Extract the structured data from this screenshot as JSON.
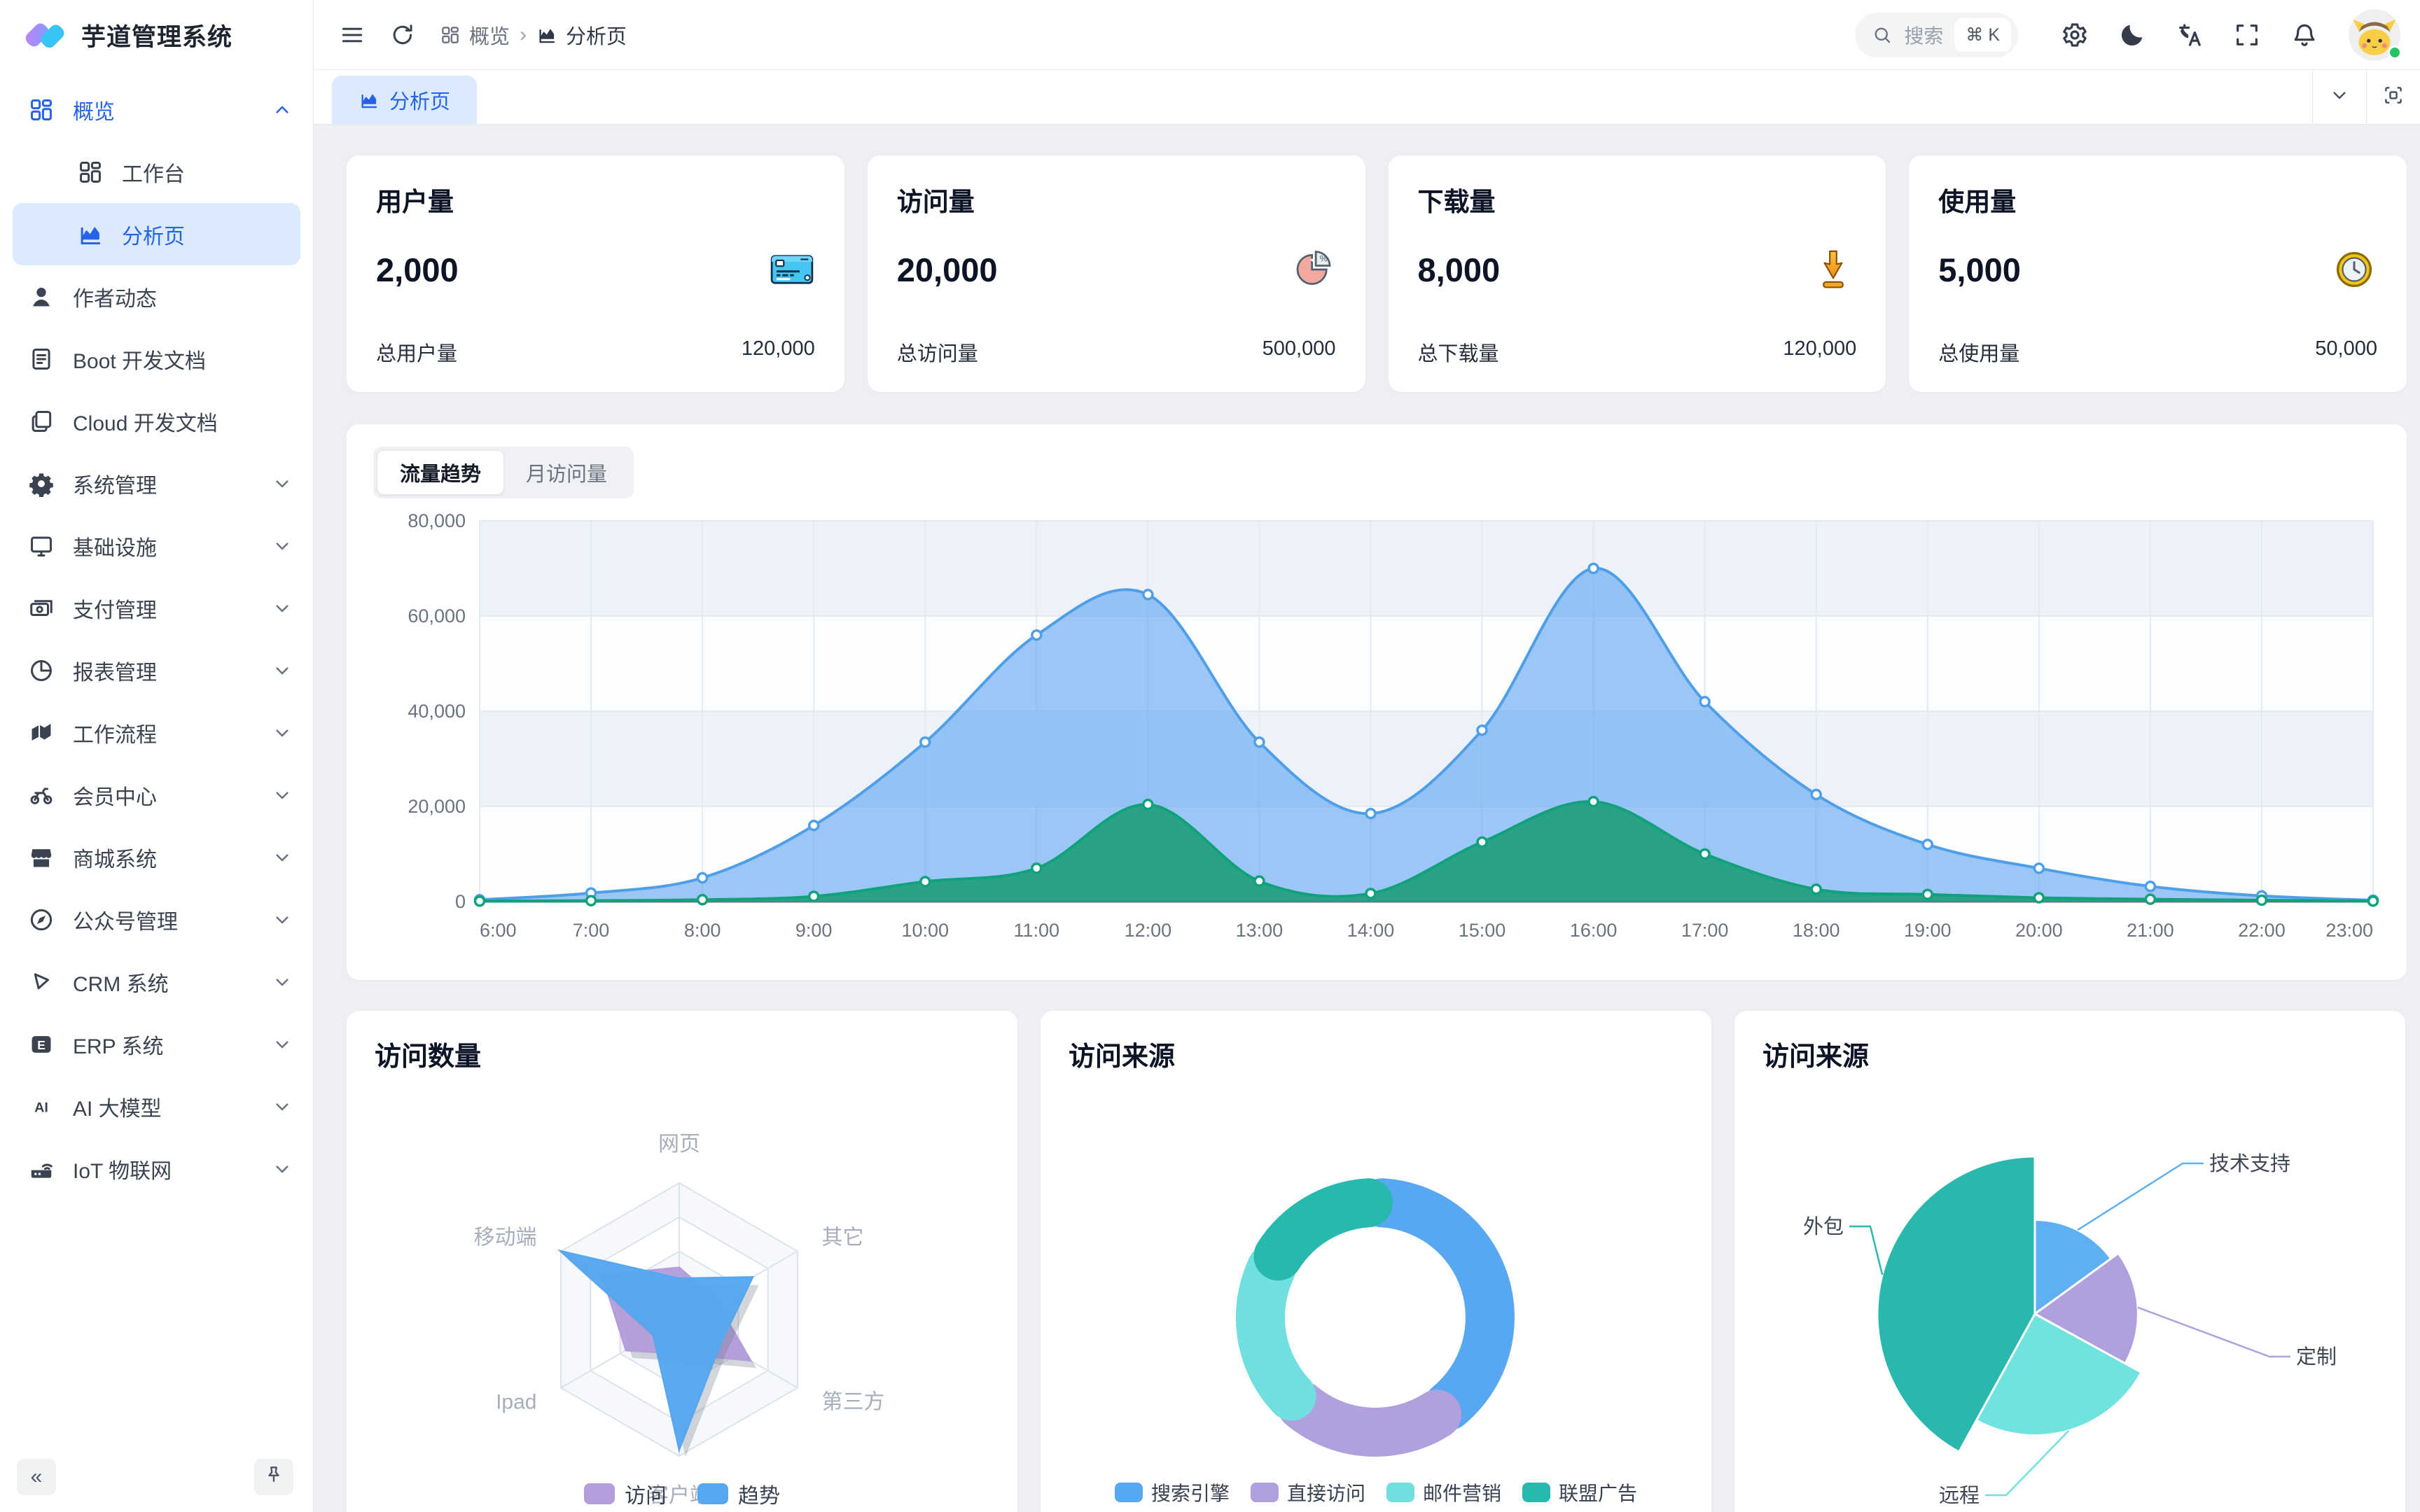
{
  "app": {
    "title": "芋道管理系统"
  },
  "theme": {
    "accent": "#2563eb",
    "accent_bg": "#dbeafe",
    "content_bg": "#edeff3",
    "logo_gradient_from": "#c084fc",
    "logo_gradient_to": "#38bdf8",
    "grid_line": "#e4e9f2",
    "band_fill": "#edf2fa",
    "axis_label": "#6b7280"
  },
  "sidebar": {
    "menu": [
      {
        "label": "概览",
        "icon": "grid-icon",
        "level": 0,
        "chevron": "up",
        "highlight": true
      },
      {
        "label": "工作台",
        "icon": "grid-icon",
        "level": 1
      },
      {
        "label": "分析页",
        "icon": "chart-icon",
        "level": 1,
        "selected": true
      },
      {
        "label": "作者动态",
        "icon": "user-icon",
        "level": 0
      },
      {
        "label": "Boot 开发文档",
        "icon": "doc-icon",
        "level": 0
      },
      {
        "label": "Cloud 开发文档",
        "icon": "docs-icon",
        "level": 0
      },
      {
        "label": "系统管理",
        "icon": "gear-icon",
        "level": 0,
        "chevron": "down"
      },
      {
        "label": "基础设施",
        "icon": "monitor-icon",
        "level": 0,
        "chevron": "down"
      },
      {
        "label": "支付管理",
        "icon": "banknote-icon",
        "level": 0,
        "chevron": "down"
      },
      {
        "label": "报表管理",
        "icon": "pie-icon",
        "level": 0,
        "chevron": "down"
      },
      {
        "label": "工作流程",
        "icon": "flow-icon",
        "level": 0,
        "chevron": "down"
      },
      {
        "label": "会员中心",
        "icon": "bike-icon",
        "level": 0,
        "chevron": "down"
      },
      {
        "label": "商城系统",
        "icon": "shop-icon",
        "level": 0,
        "chevron": "down"
      },
      {
        "label": "公众号管理",
        "icon": "compass-icon",
        "level": 0,
        "chevron": "down"
      },
      {
        "label": "CRM 系统",
        "icon": "crm-icon",
        "level": 0,
        "chevron": "down"
      },
      {
        "label": "ERP 系统",
        "icon": "erp-icon",
        "level": 0,
        "chevron": "down"
      },
      {
        "label": "AI 大模型",
        "icon": "ai-icon",
        "level": 0,
        "chevron": "down"
      },
      {
        "label": "IoT 物联网",
        "icon": "iot-icon",
        "level": 0,
        "chevron": "down"
      }
    ],
    "collapse_label": "«"
  },
  "header": {
    "breadcrumb": [
      {
        "label": "概览",
        "icon": "grid-icon"
      },
      {
        "label": "分析页",
        "icon": "chart-icon"
      }
    ],
    "search": {
      "placeholder": "搜索",
      "shortcut": "⌘ K"
    }
  },
  "tabbar": {
    "tabs": [
      {
        "label": "分析页",
        "icon": "chart-icon",
        "active": true
      }
    ]
  },
  "stats": [
    {
      "title": "用户量",
      "value": "2,000",
      "icon": "credit-card-icon",
      "footer_label": "总用户量",
      "footer_value": "120,000"
    },
    {
      "title": "访问量",
      "value": "20,000",
      "icon": "pie-stat-icon",
      "footer_label": "总访问量",
      "footer_value": "500,000"
    },
    {
      "title": "下载量",
      "value": "8,000",
      "icon": "download-icon",
      "footer_label": "总下载量",
      "footer_value": "120,000"
    },
    {
      "title": "使用量",
      "value": "5,000",
      "icon": "clock-icon",
      "footer_label": "总使用量",
      "footer_value": "50,000"
    }
  ],
  "trend": {
    "tabs": [
      {
        "label": "流量趋势",
        "active": true
      },
      {
        "label": "月访问量",
        "active": false
      }
    ]
  },
  "chart_data": [
    {
      "id": "traffic-trend",
      "type": "area",
      "title": "流量趋势",
      "xlabel": "",
      "ylabel": "",
      "x": [
        "6:00",
        "7:00",
        "8:00",
        "9:00",
        "10:00",
        "11:00",
        "12:00",
        "13:00",
        "14:00",
        "15:00",
        "16:00",
        "17:00",
        "18:00",
        "19:00",
        "20:00",
        "21:00",
        "22:00",
        "23:00"
      ],
      "ylim": [
        0,
        80000
      ],
      "yticks": [
        0,
        20000,
        40000,
        60000,
        80000
      ],
      "grid": true,
      "legend_position": "none",
      "series": [
        {
          "name": "",
          "color": "#4f9fe8",
          "fill": "rgba(96,165,240,0.62)",
          "values": [
            400,
            1800,
            5000,
            16000,
            33500,
            56000,
            64500,
            33500,
            18500,
            36000,
            70000,
            42000,
            22500,
            12000,
            7000,
            3200,
            1200,
            300
          ]
        },
        {
          "name": "",
          "color": "#11a27b",
          "fill": "rgba(32,158,126,0.92)",
          "values": [
            100,
            200,
            400,
            1100,
            4200,
            7000,
            20400,
            4300,
            1700,
            12500,
            21000,
            10000,
            2600,
            1500,
            800,
            500,
            300,
            100
          ]
        }
      ]
    },
    {
      "id": "visit-count-radar",
      "type": "radar",
      "title": "访问数量",
      "indicators": [
        "网页",
        "其它",
        "第三方",
        "客户端",
        "Ipad",
        "移动端"
      ],
      "max": 100,
      "legend_position": "bottom",
      "series": [
        {
          "name": "访问",
          "color": "#b39ddb",
          "values": [
            38,
            30,
            60,
            25,
            45,
            65
          ]
        },
        {
          "name": "趋势",
          "color": "#55a8ef",
          "values": [
            30,
            62,
            35,
            95,
            22,
            100
          ]
        }
      ]
    },
    {
      "id": "visit-source-donut",
      "type": "pie",
      "title": "访问来源",
      "donut": true,
      "legend_position": "bottom",
      "slices": [
        {
          "name": "搜索引擎",
          "value": 40,
          "color": "#58a7f1"
        },
        {
          "name": "直接访问",
          "value": 22,
          "color": "#b1a0de"
        },
        {
          "name": "邮件营销",
          "value": 21,
          "color": "#6fe0df"
        },
        {
          "name": "联盟广告",
          "value": 17,
          "color": "#27b9ae"
        }
      ]
    },
    {
      "id": "visit-source-rose",
      "type": "pie",
      "title": "访问来源",
      "rose": true,
      "legend_position": "none",
      "slices": [
        {
          "name": "技术支持",
          "value": 15,
          "color": "#5fb0f2"
        },
        {
          "name": "定制",
          "value": 18,
          "color": "#b1a0de"
        },
        {
          "name": "远程",
          "value": 25,
          "color": "#70e2df"
        },
        {
          "name": "外包",
          "value": 42,
          "color": "#29b8ad"
        }
      ]
    }
  ]
}
